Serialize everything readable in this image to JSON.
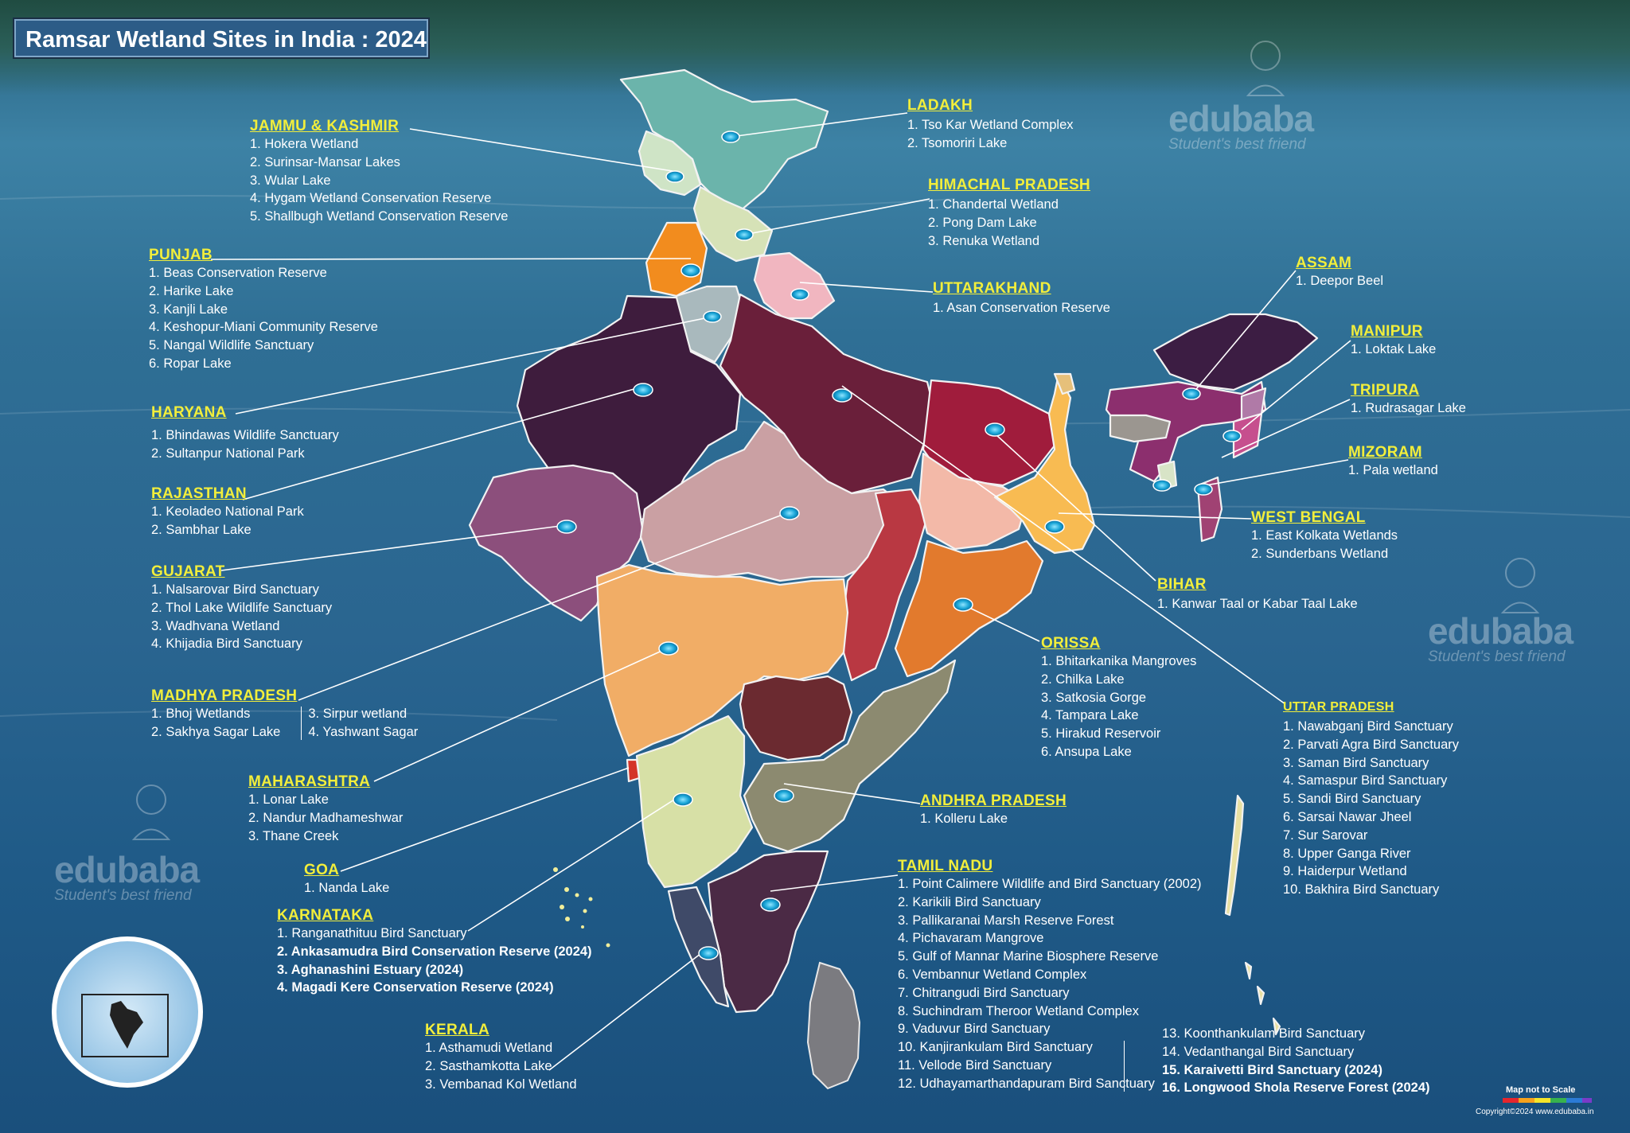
{
  "title": "Ramsar Wetland Sites in India : 2024",
  "watermark": {
    "brand": "edubaba",
    "tagline": "Student's best friend"
  },
  "colors": {
    "heading": "#f2ee3b",
    "text": "#ffffff",
    "title_bg": "#2c5c87",
    "leader": "#ffffff"
  },
  "icons": {
    "site_marker": "lake-marker-icon",
    "mascot": "mascot-icon",
    "inset": "india-inset-globe-icon"
  },
  "states": {
    "jammu_kashmir": {
      "name": "JAMMU & KASHMIR",
      "sites": [
        "1. Hokera Wetland",
        "2. Surinsar-Mansar Lakes",
        "3. Wular Lake",
        "4. Hygam Wetland Conservation Reserve",
        "5. Shallbugh Wetland Conservation Reserve"
      ]
    },
    "punjab": {
      "name": "PUNJAB",
      "sites": [
        "1. Beas Conservation Reserve",
        "2. Harike Lake",
        "3. Kanjli Lake",
        "4. Keshopur-Miani Community Reserve",
        "5. Nangal Wildlife Sanctuary",
        "6. Ropar Lake"
      ]
    },
    "haryana": {
      "name": "HARYANA",
      "sites": [
        "1. Bhindawas Wildlife Sanctuary",
        "2. Sultanpur National Park"
      ]
    },
    "rajasthan": {
      "name": "RAJASTHAN",
      "sites": [
        "1. Keoladeo National Park",
        "2. Sambhar Lake"
      ]
    },
    "gujarat": {
      "name": "GUJARAT",
      "sites": [
        "1. Nalsarovar Bird Sanctuary",
        "2. Thol Lake Wildlife Sanctuary",
        "3. Wadhvana Wetland",
        "4. Khijadia Bird Sanctuary"
      ]
    },
    "madhya_pradesh": {
      "name": "MADHYA PRADESH",
      "sites_left": [
        "1. Bhoj Wetlands",
        "2. Sakhya Sagar Lake"
      ],
      "sites_right": [
        "3. Sirpur wetland",
        "4. Yashwant Sagar"
      ]
    },
    "maharashtra": {
      "name": "MAHARASHTRA",
      "sites": [
        "1. Lonar Lake",
        "2. Nandur Madhameshwar",
        "3. Thane Creek"
      ]
    },
    "goa": {
      "name": "GOA",
      "sites": [
        "1. Nanda Lake"
      ]
    },
    "karnataka": {
      "name": "KARNATAKA",
      "sites": [
        "1. Ranganathituu Bird Sanctuary"
      ],
      "sites_2024": [
        "2. Ankasamudra Bird Conservation Reserve (2024)",
        "3. Aghanashini Estuary (2024)",
        "4. Magadi Kere Conservation Reserve (2024)"
      ]
    },
    "kerala": {
      "name": "KERALA",
      "sites": [
        "1. Asthamudi Wetland",
        "2. Sasthamkotta Lake",
        "3. Vembanad Kol Wetland"
      ]
    },
    "ladakh": {
      "name": "LADAKH",
      "sites": [
        "1. Tso Kar Wetland Complex",
        "2. Tsomoriri Lake"
      ]
    },
    "himachal_pradesh": {
      "name": "HIMACHAL PRADESH",
      "sites": [
        "1. Chandertal Wetland",
        "2. Pong Dam Lake",
        "3. Renuka Wetland"
      ]
    },
    "uttarakhand": {
      "name": "UTTARAKHAND",
      "sites": [
        "1. Asan Conservation Reserve"
      ]
    },
    "assam": {
      "name": "ASSAM",
      "sites": [
        "1. Deepor Beel"
      ]
    },
    "manipur": {
      "name": "MANIPUR",
      "sites": [
        "1. Loktak Lake"
      ]
    },
    "tripura": {
      "name": "TRIPURA",
      "sites": [
        "1. Rudrasagar Lake"
      ]
    },
    "mizoram": {
      "name": "MIZORAM",
      "sites": [
        "1. Pala wetland"
      ]
    },
    "west_bengal": {
      "name": "WEST BENGAL",
      "sites": [
        "1. East Kolkata Wetlands",
        "2. Sunderbans Wetland"
      ]
    },
    "bihar": {
      "name": "BIHAR",
      "sites": [
        "1. Kanwar Taal or Kabar Taal Lake"
      ]
    },
    "orissa": {
      "name": "ORISSA",
      "sites": [
        "1. Bhitarkanika Mangroves",
        "2. Chilka Lake",
        "3. Satkosia Gorge",
        "4. Tampara Lake",
        "5. Hirakud Reservoir",
        "6. Ansupa Lake"
      ]
    },
    "uttar_pradesh": {
      "name": "UTTAR PRADESH",
      "sites": [
        "1. Nawabganj Bird Sanctuary",
        "2. Parvati Agra Bird Sanctuary",
        "3. Saman Bird Sanctuary",
        "4. Samaspur Bird Sanctuary",
        "5. Sandi Bird Sanctuary",
        "6. Sarsai Nawar Jheel",
        "7. Sur Sarovar",
        "8. Upper Ganga River",
        "9. Haiderpur Wetland",
        "10. Bakhira Bird Sanctuary"
      ]
    },
    "andhra_pradesh": {
      "name": "ANDHRA PRADESH",
      "sites": [
        "1. Kolleru Lake"
      ]
    },
    "tamil_nadu": {
      "name": "TAMIL NADU",
      "sites_left": [
        "1. Point Calimere Wildlife and Bird Sanctuary (2002)",
        "2. Karikili Bird Sanctuary",
        "3. Pallikaranai Marsh Reserve Forest",
        "4. Pichavaram Mangrove",
        "5. Gulf of Mannar Marine Biosphere Reserve",
        "6. Vembannur Wetland Complex",
        "7. Chitrangudi Bird Sanctuary",
        "8. Suchindram Theroor Wetland Complex",
        "9. Vaduvur Bird Sanctuary",
        "10. Kanjirankulam Bird Sanctuary",
        "11. Vellode Bird Sanctuary",
        "12. Udhayamarthandapuram Bird Sanctuary"
      ],
      "sites_right": [
        "13. Koonthankulam Bird Sanctuary",
        "14. Vedanthangal Bird Sanctuary"
      ],
      "sites_right_2024": [
        "15. Karaivetti Bird Sanctuary (2024)",
        "16. Longwood Shola Reserve Forest (2024)"
      ]
    }
  },
  "footer": {
    "scale_note": "Map not to Scale",
    "copyright": "Copyright©2024 www.edubaba.in"
  }
}
